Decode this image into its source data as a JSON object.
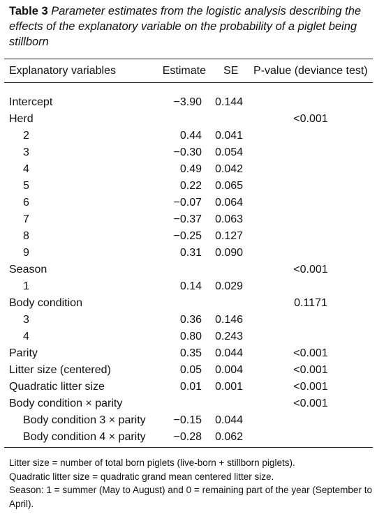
{
  "caption": {
    "label": "Table 3",
    "text": "Parameter estimates from the logistic analysis describing the effects of the explanatory variable on the probability of a piglet being stillborn"
  },
  "header": [
    "Explanatory variables",
    "Estimate",
    "SE",
    "P-value (deviance test)"
  ],
  "rows": [
    {
      "label": "Intercept",
      "estimate": "−3.90",
      "se": "0.144"
    },
    {
      "label": "Herd",
      "p": "<0.001",
      "sub": [
        {
          "label": "2",
          "estimate": "0.44",
          "se": "0.041"
        },
        {
          "label": "3",
          "estimate": "−0.30",
          "se": "0.054"
        },
        {
          "label": "4",
          "estimate": "0.49",
          "se": "0.042"
        },
        {
          "label": "5",
          "estimate": "0.22",
          "se": "0.065"
        },
        {
          "label": "6",
          "estimate": "−0.07",
          "se": "0.064"
        },
        {
          "label": "7",
          "estimate": "−0.37",
          "se": "0.063"
        },
        {
          "label": "8",
          "estimate": "−0.25",
          "se": "0.127"
        },
        {
          "label": "9",
          "estimate": "0.31",
          "se": "0.090"
        }
      ]
    },
    {
      "label": "Season",
      "p": "<0.001",
      "sub": [
        {
          "label": "1",
          "estimate": "0.14",
          "se": "0.029"
        }
      ]
    },
    {
      "label": "Body condition",
      "p": "0.1171",
      "sub": [
        {
          "label": "3",
          "estimate": "0.36",
          "se": "0.146"
        },
        {
          "label": "4",
          "estimate": "0.80",
          "se": "0.243"
        }
      ]
    },
    {
      "label": "Parity",
      "estimate": "0.35",
      "se": "0.044",
      "p": "<0.001"
    },
    {
      "label": "Litter size (centered)",
      "estimate": "0.05",
      "se": "0.004",
      "p": "<0.001"
    },
    {
      "label": "Quadratic litter size",
      "estimate": "0.01",
      "se": "0.001",
      "p": "<0.001"
    },
    {
      "label": "Body condition × parity",
      "p": "<0.001",
      "sub": [
        {
          "label": "Body condition 3 × parity",
          "estimate": "−0.15",
          "se": "0.044"
        },
        {
          "label": "Body condition 4 × parity",
          "estimate": "−0.28",
          "se": "0.062"
        }
      ]
    }
  ],
  "footnotes": [
    "Litter size = number of total born piglets (live-born + stillborn piglets).",
    "Quadratic litter size = quadratic grand mean centered litter size.",
    "Season: 1 = summer (May to August) and 0 = remaining part of the year (September to April)."
  ]
}
